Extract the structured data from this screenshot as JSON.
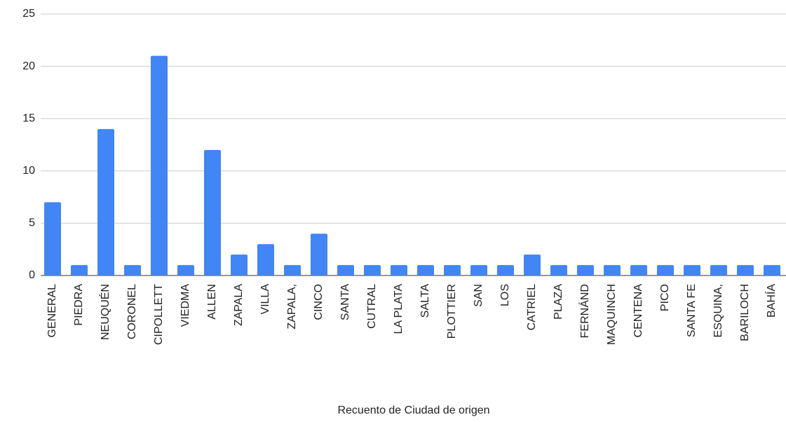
{
  "chart_data": {
    "type": "bar",
    "x_label": "Recuento de Ciudad de origen",
    "categories": [
      "GENERAL",
      "PIEDRA",
      "NEUQUÉN",
      "CORONEL",
      "CIPOLLETT",
      "VIEDMA",
      "ALLEN",
      "ZAPALA",
      "VILLA",
      "ZAPALA,",
      "CINCO",
      "SANTA",
      "CUTRAL",
      "LA PLATA",
      "SALTA",
      "PLOTTIER",
      "SAN",
      "LOS",
      "CATRIEL",
      "PLAZA",
      "FERNÁND",
      "MAQUINCH",
      "CENTENA",
      "PICO",
      "SANTA FE",
      "ESQUINA,",
      "BARILOCH",
      "BAHÍA"
    ],
    "values": [
      7,
      1,
      14,
      1,
      21,
      1,
      12,
      2,
      3,
      1,
      4,
      1,
      1,
      1,
      1,
      1,
      1,
      1,
      2,
      1,
      1,
      1,
      1,
      1,
      1,
      1,
      1,
      1
    ],
    "color": "#4285f4",
    "ylim": [
      0,
      25
    ],
    "yticks": [
      0,
      5,
      10,
      15,
      20,
      25
    ],
    "grid": true
  }
}
